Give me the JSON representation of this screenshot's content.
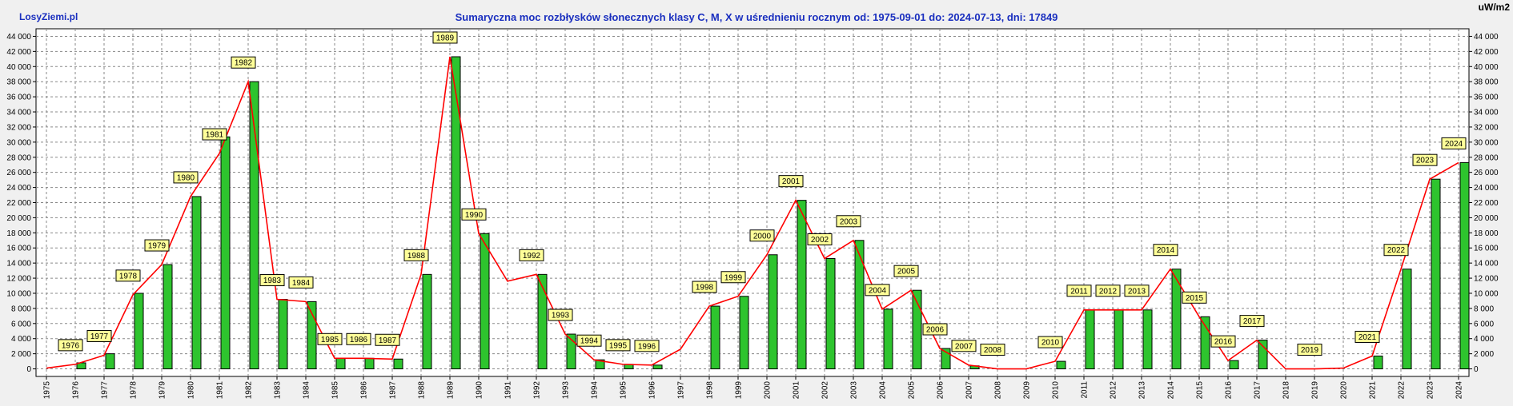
{
  "header": {
    "site": "LosyZiemi.pl",
    "title": "Sumaryczna moc rozbłysków słonecznych klasy C, M, X w uśrednieniu rocznym od: 1975-09-01 do: 2024-07-13, dni: 17849",
    "unit": "uW/m2"
  },
  "chart_data": {
    "type": "bar",
    "title": "Sumaryczna moc rozbłysków słonecznych klasy C, M, X w uśrednieniu rocznym od: 1975-09-01 do: 2024-07-13, dni: 17849",
    "ylabel": "uW/m2",
    "ylim": [
      -1000,
      45000
    ],
    "yticks": [
      0,
      2000,
      4000,
      6000,
      8000,
      10000,
      12000,
      14000,
      16000,
      18000,
      20000,
      22000,
      24000,
      26000,
      28000,
      30000,
      32000,
      34000,
      36000,
      38000,
      40000,
      42000,
      44000
    ],
    "ytick_labels": [
      "0",
      "2 000",
      "4 000",
      "6 000",
      "8 000",
      "10 000",
      "12 000",
      "14 000",
      "16 000",
      "18 000",
      "20 000",
      "22 000",
      "24 000",
      "26 000",
      "28 000",
      "30 000",
      "32 000",
      "34 000",
      "36 000",
      "38 000",
      "40 000",
      "42 000",
      "44 000"
    ],
    "grid": true,
    "categories": [
      "1975",
      "1976",
      "1977",
      "1978",
      "1979",
      "1980",
      "1981",
      "1982",
      "1983",
      "1984",
      "1985",
      "1986",
      "1987",
      "1988",
      "1989",
      "1990",
      "1991",
      "1992",
      "1993",
      "1994",
      "1995",
      "1996",
      "1997",
      "1998",
      "1999",
      "2000",
      "2001",
      "2002",
      "2003",
      "2004",
      "2005",
      "2006",
      "2007",
      "2008",
      "2009",
      "2010",
      "2011",
      "2012",
      "2013",
      "2014",
      "2015",
      "2016",
      "2017",
      "2018",
      "2019",
      "2020",
      "2021",
      "2022",
      "2023",
      "2024"
    ],
    "bars": [
      0,
      800,
      2000,
      10000,
      13800,
      22800,
      30700,
      38000,
      9200,
      8900,
      1400,
      1400,
      1300,
      12500,
      41300,
      17900,
      0,
      12500,
      4600,
      1200,
      600,
      500,
      0,
      8300,
      9600,
      15100,
      22300,
      14600,
      17000,
      7900,
      10400,
      2700,
      400,
      0,
      0,
      1000,
      7800,
      7800,
      7800,
      13200,
      6900,
      1100,
      3800,
      0,
      0,
      0,
      1700,
      13200,
      25100,
      27300
    ],
    "line": [
      100,
      600,
      1800,
      9800,
      13800,
      22800,
      28500,
      38000,
      9200,
      8900,
      1400,
      1400,
      1300,
      12500,
      41300,
      17900,
      11600,
      12500,
      4600,
      1200,
      600,
      500,
      2600,
      8300,
      9600,
      15100,
      22300,
      14600,
      17000,
      7900,
      10400,
      2700,
      500,
      0,
      0,
      1000,
      7800,
      7800,
      7800,
      13200,
      6900,
      1100,
      3800,
      0,
      0,
      100,
      1700,
      13200,
      25100,
      27300
    ],
    "data_labels": [
      null,
      "1976",
      "1977",
      "1978",
      "1979",
      "1980",
      "1981",
      "1982",
      "1983",
      "1984",
      "1985",
      "1986",
      "1987",
      "1988",
      "1989",
      "1990",
      null,
      "1992",
      "1993",
      "1994",
      "1995",
      "1996",
      null,
      "1998",
      "1999",
      "2000",
      "2001",
      "2002",
      "2003",
      "2004",
      "2005",
      "2006",
      "2007",
      "2008",
      null,
      "2010",
      "2011",
      "2012",
      "2013",
      "2014",
      "2015",
      "2016",
      "2017",
      null,
      "2019",
      null,
      "2021",
      "2022",
      "2023",
      "2024"
    ],
    "colors": {
      "bar": "#2ec42e",
      "line": "#ff0000",
      "label_bg": "#ffff99",
      "grid": "#888888",
      "title": "#1a2fbf"
    }
  }
}
